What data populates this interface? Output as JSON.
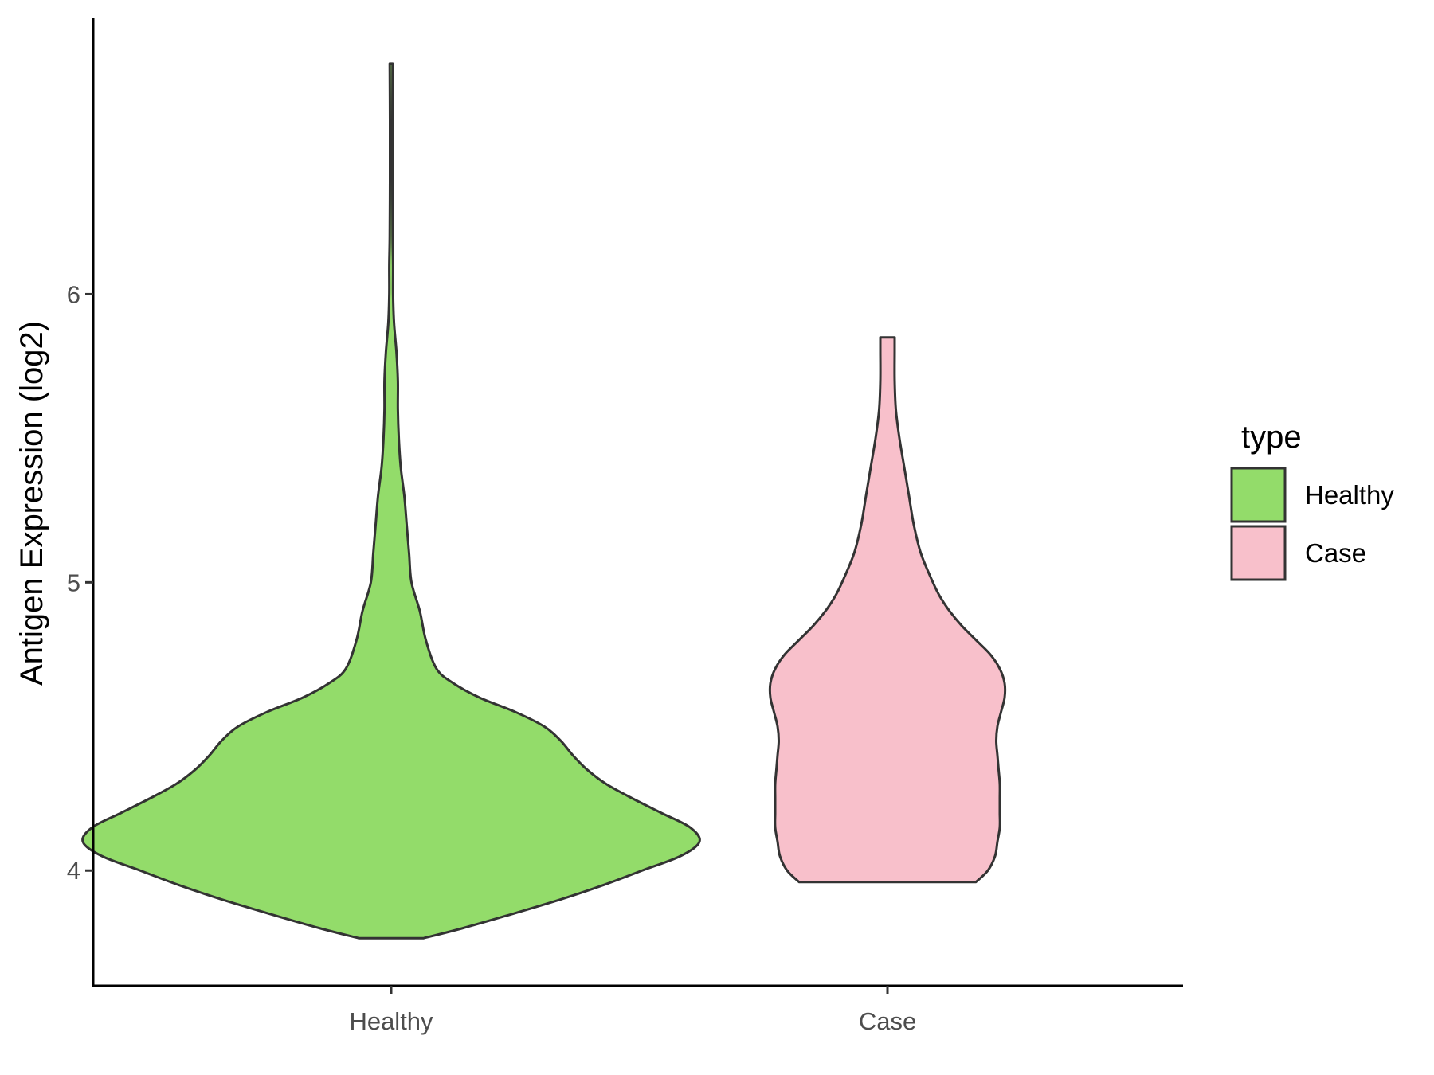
{
  "chart_data": {
    "type": "violin",
    "ylabel": "Antigen Expression (log2)",
    "xlabel": "",
    "categories": [
      "Healthy",
      "Case"
    ],
    "y_ticks": [
      4,
      5,
      6
    ],
    "ylim": [
      3.6,
      6.96
    ],
    "grid": false,
    "legend": {
      "title": "type",
      "placement": "right",
      "entries": [
        {
          "label": "Healthy",
          "color": "#93dc6a"
        },
        {
          "label": "Case",
          "color": "#f8c0cb"
        }
      ]
    },
    "series": [
      {
        "category": "Healthy",
        "color": "#93dc6a",
        "min": 3.765,
        "max": 6.8,
        "profile": [
          [
            3.765,
            0.135
          ],
          [
            3.8,
            0.3
          ],
          [
            3.85,
            0.51
          ],
          [
            3.9,
            0.71
          ],
          [
            3.95,
            0.89
          ],
          [
            4.0,
            1.05
          ],
          [
            4.05,
            1.21
          ],
          [
            4.1,
            1.29
          ],
          [
            4.15,
            1.25
          ],
          [
            4.2,
            1.13
          ],
          [
            4.25,
            1.01
          ],
          [
            4.3,
            0.9
          ],
          [
            4.35,
            0.82
          ],
          [
            4.4,
            0.76
          ],
          [
            4.45,
            0.71
          ],
          [
            4.5,
            0.64
          ],
          [
            4.55,
            0.52
          ],
          [
            4.6,
            0.37
          ],
          [
            4.65,
            0.26
          ],
          [
            4.7,
            0.19
          ],
          [
            4.8,
            0.145
          ],
          [
            4.9,
            0.12
          ],
          [
            5.0,
            0.085
          ],
          [
            5.1,
            0.075
          ],
          [
            5.2,
            0.065
          ],
          [
            5.3,
            0.055
          ],
          [
            5.4,
            0.04
          ],
          [
            5.5,
            0.032
          ],
          [
            5.6,
            0.028
          ],
          [
            5.7,
            0.028
          ],
          [
            5.8,
            0.022
          ],
          [
            5.9,
            0.012
          ],
          [
            6.0,
            0.008
          ],
          [
            6.1,
            0.008
          ],
          [
            6.2,
            0.006
          ],
          [
            6.4,
            0.005
          ],
          [
            6.6,
            0.005
          ],
          [
            6.8,
            0.006
          ]
        ]
      },
      {
        "category": "Case",
        "color": "#f8c0cb",
        "min": 3.96,
        "max": 5.85,
        "profile": [
          [
            3.96,
            0.37
          ],
          [
            4.0,
            0.42
          ],
          [
            4.05,
            0.45
          ],
          [
            4.1,
            0.46
          ],
          [
            4.15,
            0.47
          ],
          [
            4.2,
            0.47
          ],
          [
            4.25,
            0.47
          ],
          [
            4.3,
            0.47
          ],
          [
            4.35,
            0.465
          ],
          [
            4.4,
            0.46
          ],
          [
            4.45,
            0.455
          ],
          [
            4.5,
            0.46
          ],
          [
            4.55,
            0.475
          ],
          [
            4.6,
            0.49
          ],
          [
            4.65,
            0.49
          ],
          [
            4.7,
            0.47
          ],
          [
            4.75,
            0.43
          ],
          [
            4.8,
            0.37
          ],
          [
            4.85,
            0.31
          ],
          [
            4.9,
            0.26
          ],
          [
            4.95,
            0.22
          ],
          [
            5.0,
            0.19
          ],
          [
            5.1,
            0.14
          ],
          [
            5.2,
            0.11
          ],
          [
            5.3,
            0.09
          ],
          [
            5.4,
            0.07
          ],
          [
            5.5,
            0.05
          ],
          [
            5.6,
            0.035
          ],
          [
            5.7,
            0.03
          ],
          [
            5.8,
            0.03
          ],
          [
            5.85,
            0.03
          ]
        ]
      }
    ]
  }
}
